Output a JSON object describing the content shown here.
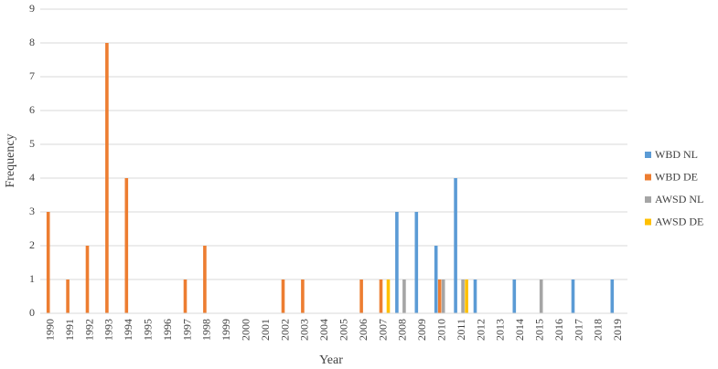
{
  "chart_data": {
    "type": "bar",
    "x_label": "Year",
    "y_label": "Frequency",
    "categories": [
      "1990",
      "1991",
      "1992",
      "1993",
      "1994",
      "1995",
      "1996",
      "1997",
      "1998",
      "1999",
      "2000",
      "2001",
      "2002",
      "2003",
      "2004",
      "2005",
      "2006",
      "2007",
      "2008",
      "2009",
      "2010",
      "2011",
      "2012",
      "2013",
      "2014",
      "2015",
      "2016",
      "2017",
      "2018",
      "2019"
    ],
    "series": [
      {
        "name": "WBD NL",
        "color": "#5b9bd5",
        "values": [
          0,
          0,
          0,
          0,
          0,
          0,
          0,
          0,
          0,
          0,
          0,
          0,
          0,
          0,
          0,
          0,
          0,
          0,
          3,
          3,
          2,
          4,
          1,
          0,
          1,
          0,
          0,
          1,
          0,
          1
        ]
      },
      {
        "name": "WBD DE",
        "color": "#ed7d31",
        "values": [
          3,
          1,
          2,
          8,
          4,
          0,
          0,
          1,
          2,
          0,
          0,
          0,
          1,
          1,
          0,
          0,
          1,
          1,
          0,
          0,
          1,
          0,
          0,
          0,
          0,
          0,
          0,
          0,
          0,
          0
        ]
      },
      {
        "name": "AWSD NL",
        "color": "#a5a5a5",
        "values": [
          0,
          0,
          0,
          0,
          0,
          0,
          0,
          0,
          0,
          0,
          0,
          0,
          0,
          0,
          0,
          0,
          0,
          0,
          1,
          0,
          1,
          1,
          0,
          0,
          0,
          1,
          0,
          0,
          0,
          0
        ]
      },
      {
        "name": "AWSD DE",
        "color": "#ffc000",
        "values": [
          0,
          0,
          0,
          0,
          0,
          0,
          0,
          0,
          0,
          0,
          0,
          0,
          0,
          0,
          0,
          0,
          0,
          1,
          0,
          0,
          0,
          1,
          0,
          0,
          0,
          0,
          0,
          0,
          0,
          0
        ]
      }
    ],
    "ylim": [
      0,
      9
    ],
    "yticks": [
      0,
      1,
      2,
      3,
      4,
      5,
      6,
      7,
      8,
      9
    ],
    "grid": true,
    "legend": "right"
  }
}
